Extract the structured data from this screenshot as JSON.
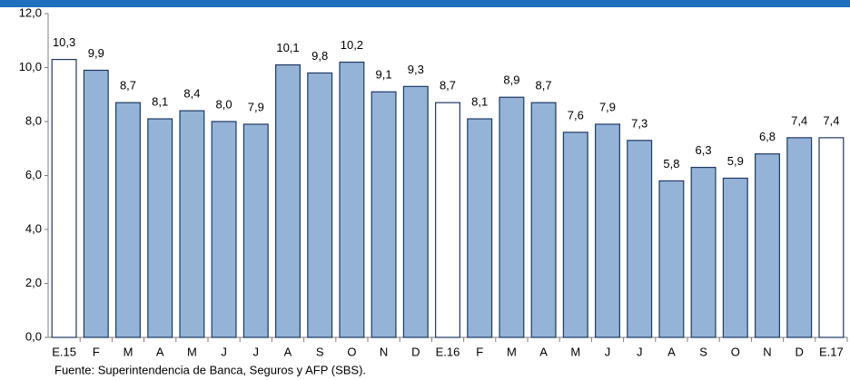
{
  "chart_data": {
    "type": "bar",
    "categories": [
      "E.15",
      "F",
      "M",
      "A",
      "M",
      "J",
      "J",
      "A",
      "S",
      "O",
      "N",
      "D",
      "E.16",
      "F",
      "M",
      "A",
      "M",
      "J",
      "J",
      "A",
      "S",
      "O",
      "N",
      "D",
      "E.17"
    ],
    "values": [
      10.3,
      9.9,
      8.7,
      8.1,
      8.4,
      8.0,
      7.9,
      10.1,
      9.8,
      10.2,
      9.1,
      9.3,
      8.7,
      8.1,
      8.9,
      8.7,
      7.6,
      7.9,
      7.3,
      5.8,
      6.3,
      5.9,
      6.8,
      7.4,
      7.4
    ],
    "value_labels": [
      "10,3",
      "9,9",
      "8,7",
      "8,1",
      "8,4",
      "8,0",
      "7,9",
      "10,1",
      "9,8",
      "10,2",
      "9,1",
      "9,3",
      "8,7",
      "8,1",
      "8,9",
      "8,7",
      "7,6",
      "7,9",
      "7,3",
      "5,8",
      "6,3",
      "5,9",
      "6,8",
      "7,4",
      "7,4"
    ],
    "colors": [
      "#ffffff",
      "#95b3d7",
      "#95b3d7",
      "#95b3d7",
      "#95b3d7",
      "#95b3d7",
      "#95b3d7",
      "#95b3d7",
      "#95b3d7",
      "#95b3d7",
      "#95b3d7",
      "#95b3d7",
      "#ffffff",
      "#95b3d7",
      "#95b3d7",
      "#95b3d7",
      "#95b3d7",
      "#95b3d7",
      "#95b3d7",
      "#95b3d7",
      "#95b3d7",
      "#95b3d7",
      "#95b3d7",
      "#95b3d7",
      "#ffffff"
    ],
    "edge_color": "#1f3864",
    "ylim": [
      0,
      12
    ],
    "yticks": [
      {
        "value": 0,
        "label": "0,0"
      },
      {
        "value": 2,
        "label": "2,0"
      },
      {
        "value": 4,
        "label": "4,0"
      },
      {
        "value": 6,
        "label": "6,0"
      },
      {
        "value": 8,
        "label": "8,0"
      },
      {
        "value": 10,
        "label": "10,0"
      },
      {
        "value": 12,
        "label": "12,0"
      }
    ],
    "grid": false,
    "source": "Fuente: Superintendencia de Banca, Seguros y AFP (SBS)."
  }
}
